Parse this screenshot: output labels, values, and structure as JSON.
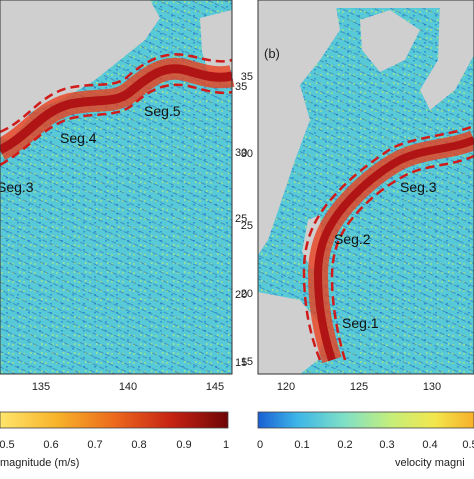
{
  "panel_a": {
    "x_ticks": [
      "135",
      "140",
      "145"
    ],
    "y_ticks": [
      "35",
      "30",
      "25",
      "20",
      "15"
    ],
    "segments": [
      "Seg.3",
      "Seg.4",
      "Seg.5"
    ],
    "colorbar": {
      "ticks": [
        "0.5",
        "0.6",
        "0.7",
        "0.8",
        "0.9",
        "1"
      ],
      "title": "magnitude (m/s)"
    }
  },
  "panel_b": {
    "label": "(b)",
    "x_ticks": [
      "120",
      "125",
      "130"
    ],
    "y_ticks": [
      "35",
      "30",
      "25",
      "20",
      "15"
    ],
    "segments": [
      "Seg.1",
      "Seg.2",
      "Seg.3"
    ],
    "colorbar": {
      "ticks": [
        "0",
        "0.1",
        "0.2",
        "0.3",
        "0.4",
        "0.5"
      ],
      "title": "velocity magni"
    }
  },
  "colors": {
    "ocean_base": "#58c9d6",
    "land": "#cfcfcf",
    "current_core": "#b01414",
    "current_edge": "#e8401e",
    "segment_outline": "#d11a1a",
    "arrows": "#1e4aa8"
  }
}
